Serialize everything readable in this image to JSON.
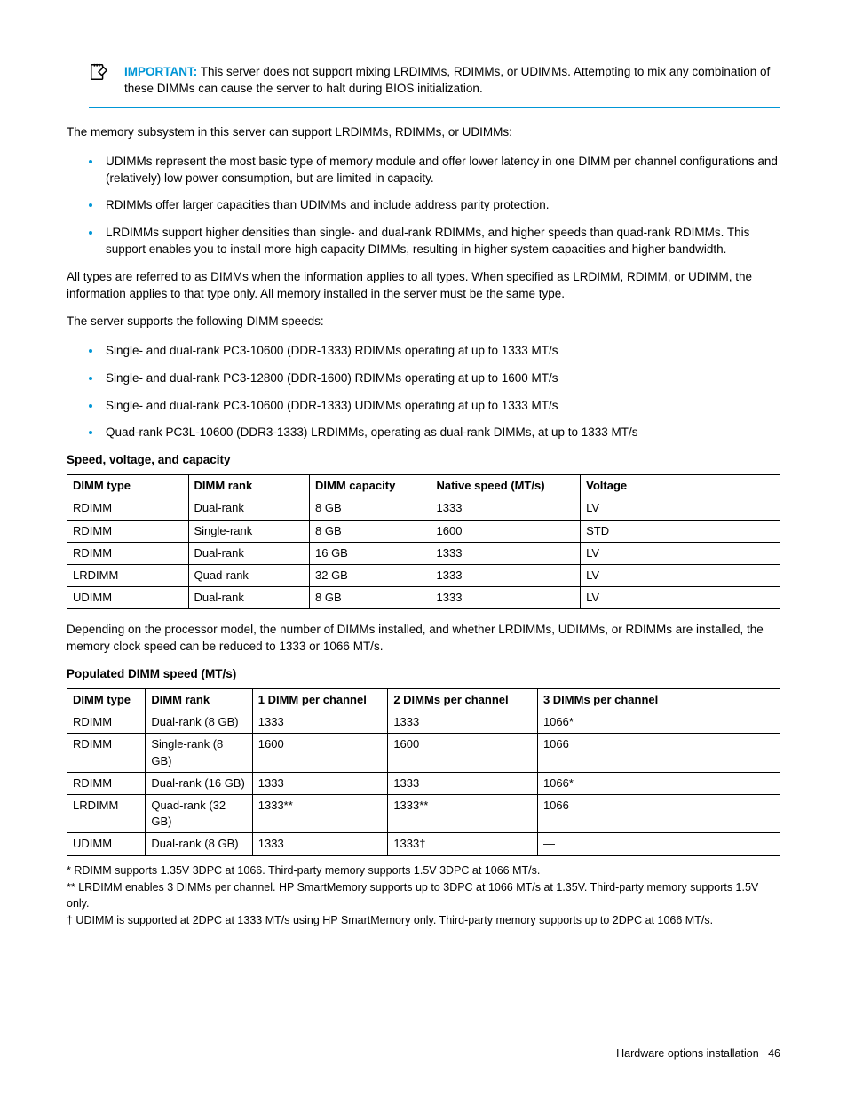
{
  "callout": {
    "important_label": "IMPORTANT:",
    "text": "This server does not support mixing LRDIMMs, RDIMMs, or UDIMMs. Attempting to mix any combination of these DIMMs can cause the server to halt during BIOS initialization."
  },
  "intro_para": "The memory subsystem in this server can support LRDIMMs, RDIMMs, or UDIMMs:",
  "memory_types_list": [
    "UDIMMs represent the most basic type of memory module and offer lower latency in one DIMM per channel configurations and (relatively) low power consumption, but are limited in capacity.",
    "RDIMMs offer larger capacities than UDIMMs and include address parity protection.",
    "LRDIMMs support higher densities than single- and dual-rank RDIMMs, and higher speeds than quad-rank RDIMMs. This support enables you to install more high capacity DIMMs, resulting in higher system capacities and higher bandwidth."
  ],
  "para_all_types": "All types are referred to as DIMMs when the information applies to all types. When specified as LRDIMM, RDIMM, or UDIMM, the information applies to that type only. All memory installed in the server must be the same type.",
  "para_speeds_intro": "The server supports the following DIMM speeds:",
  "speed_list": [
    "Single- and dual-rank PC3-10600 (DDR-1333) RDIMMs operating at up to 1333 MT/s",
    "Single- and dual-rank PC3-12800 (DDR-1600) RDIMMs operating at up to 1600 MT/s",
    "Single- and dual-rank PC3-10600 (DDR-1333) UDIMMs operating at up to 1333 MT/s",
    "Quad-rank PC3L-10600 (DDR3-1333) LRDIMMs, operating as dual-rank DIMMs, at up to 1333 MT/s"
  ],
  "table1": {
    "title": "Speed, voltage, and capacity",
    "columns": [
      "DIMM type",
      "DIMM rank",
      "DIMM capacity",
      "Native speed (MT/s)",
      "Voltage"
    ],
    "col_widths": [
      "17%",
      "17%",
      "17%",
      "21%",
      "28%"
    ],
    "rows": [
      [
        "RDIMM",
        "Dual-rank",
        "8 GB",
        "1333",
        "LV"
      ],
      [
        "RDIMM",
        "Single-rank",
        "8 GB",
        "1600",
        "STD"
      ],
      [
        "RDIMM",
        "Dual-rank",
        "16 GB",
        "1333",
        "LV"
      ],
      [
        "LRDIMM",
        "Quad-rank",
        "32 GB",
        "1333",
        "LV"
      ],
      [
        "UDIMM",
        "Dual-rank",
        "8 GB",
        "1333",
        "LV"
      ]
    ]
  },
  "para_depending": "Depending on the processor model, the number of DIMMs installed, and whether LRDIMMs, UDIMMs, or RDIMMs are installed, the memory clock speed can be reduced to 1333 or 1066 MT/s.",
  "table2": {
    "title": "Populated DIMM speed (MT/s)",
    "columns": [
      "DIMM type",
      "DIMM rank",
      "1 DIMM per channel",
      "2 DIMMs per channel",
      "3 DIMMs per channel"
    ],
    "col_widths": [
      "11%",
      "15%",
      "19%",
      "21%",
      "34%"
    ],
    "rows": [
      [
        "RDIMM",
        "Dual-rank (8 GB)",
        "1333",
        "1333",
        "1066*"
      ],
      [
        "RDIMM",
        "Single-rank (8 GB)",
        "1600",
        "1600",
        "1066"
      ],
      [
        "RDIMM",
        "Dual-rank (16 GB)",
        "1333",
        "1333",
        "1066*"
      ],
      [
        "LRDIMM",
        "Quad-rank (32 GB)",
        "1333**",
        "1333**",
        "1066"
      ],
      [
        "UDIMM",
        "Dual-rank (8 GB)",
        "1333",
        "1333†",
        "—"
      ]
    ]
  },
  "footnotes": [
    "* RDIMM supports 1.35V 3DPC at 1066. Third-party memory supports 1.5V 3DPC at 1066 MT/s.",
    "** LRDIMM enables 3 DIMMs per channel. HP SmartMemory supports up to 3DPC at 1066 MT/s at 1.35V. Third-party memory supports 1.5V only.",
    "† UDIMM is supported at 2DPC at 1333 MT/s using HP SmartMemory only. Third-party memory supports up to 2DPC at 1066 MT/s."
  ],
  "footer": {
    "section": "Hardware options installation",
    "page": "46"
  },
  "colors": {
    "accent": "#0096d6"
  }
}
